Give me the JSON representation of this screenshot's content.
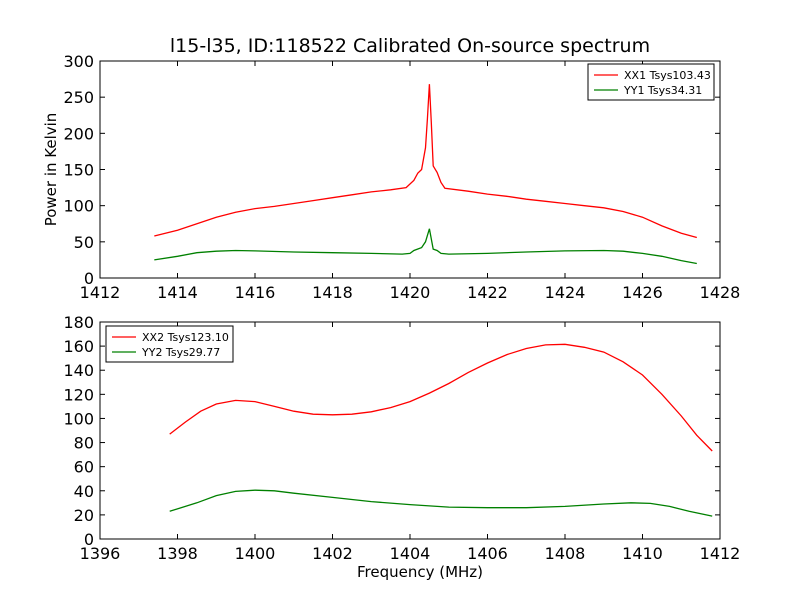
{
  "chart_data": [
    {
      "type": "line",
      "title": "l15-l35, ID:118522 Calibrated On-source spectrum",
      "xlabel": "",
      "ylabel": "Power in Kelvin",
      "xlim": [
        1412,
        1428
      ],
      "ylim": [
        0,
        300
      ],
      "xticks": [
        1412,
        1414,
        1416,
        1418,
        1420,
        1422,
        1424,
        1426,
        1428
      ],
      "yticks": [
        0,
        50,
        100,
        150,
        200,
        250,
        300
      ],
      "legend_position": "top-right",
      "series": [
        {
          "name": "XX1 Tsys103.43",
          "color": "#ff0000",
          "points": [
            [
              1413.4,
              58
            ],
            [
              1414.0,
              66
            ],
            [
              1414.5,
              75
            ],
            [
              1415.0,
              84
            ],
            [
              1415.5,
              91
            ],
            [
              1416.0,
              96
            ],
            [
              1416.5,
              99
            ],
            [
              1417.0,
              103
            ],
            [
              1417.5,
              107
            ],
            [
              1418.0,
              111
            ],
            [
              1418.5,
              115
            ],
            [
              1419.0,
              119
            ],
            [
              1419.5,
              122
            ],
            [
              1419.9,
              125
            ],
            [
              1420.1,
              135
            ],
            [
              1420.2,
              145
            ],
            [
              1420.3,
              150
            ],
            [
              1420.4,
              180
            ],
            [
              1420.45,
              220
            ],
            [
              1420.5,
              268
            ],
            [
              1420.55,
              215
            ],
            [
              1420.6,
              155
            ],
            [
              1420.7,
              146
            ],
            [
              1420.8,
              132
            ],
            [
              1420.9,
              124
            ],
            [
              1421.5,
              120
            ],
            [
              1422.0,
              116
            ],
            [
              1422.5,
              113
            ],
            [
              1423.0,
              109
            ],
            [
              1423.5,
              106
            ],
            [
              1424.0,
              103
            ],
            [
              1424.5,
              100
            ],
            [
              1425.0,
              97
            ],
            [
              1425.5,
              92
            ],
            [
              1426.0,
              84
            ],
            [
              1426.5,
              72
            ],
            [
              1427.0,
              62
            ],
            [
              1427.4,
              56
            ]
          ]
        },
        {
          "name": "YY1 Tsys34.31",
          "color": "#008000",
          "points": [
            [
              1413.4,
              25
            ],
            [
              1414.0,
              30
            ],
            [
              1414.5,
              35
            ],
            [
              1415.0,
              37
            ],
            [
              1415.5,
              38
            ],
            [
              1416.0,
              37.5
            ],
            [
              1417.0,
              36
            ],
            [
              1418.0,
              35
            ],
            [
              1419.0,
              34
            ],
            [
              1419.8,
              33
            ],
            [
              1420.0,
              34
            ],
            [
              1420.1,
              38
            ],
            [
              1420.3,
              42
            ],
            [
              1420.4,
              50
            ],
            [
              1420.5,
              68
            ],
            [
              1420.6,
              40
            ],
            [
              1420.7,
              38
            ],
            [
              1420.8,
              34
            ],
            [
              1421.0,
              33
            ],
            [
              1422.0,
              34
            ],
            [
              1423.0,
              36
            ],
            [
              1424.0,
              37.5
            ],
            [
              1425.0,
              38
            ],
            [
              1425.5,
              37
            ],
            [
              1426.0,
              34
            ],
            [
              1426.5,
              30
            ],
            [
              1427.0,
              24
            ],
            [
              1427.4,
              20
            ]
          ]
        }
      ]
    },
    {
      "type": "line",
      "title": "",
      "xlabel": "Frequency (MHz)",
      "ylabel": "",
      "xlim": [
        1396,
        1412
      ],
      "ylim": [
        0,
        180
      ],
      "xticks": [
        1396,
        1398,
        1400,
        1402,
        1404,
        1406,
        1408,
        1410,
        1412
      ],
      "yticks": [
        0,
        20,
        40,
        60,
        80,
        100,
        120,
        140,
        160,
        180
      ],
      "legend_position": "top-left",
      "series": [
        {
          "name": "XX2 Tsys123.10",
          "color": "#ff0000",
          "points": [
            [
              1397.8,
              87
            ],
            [
              1398.2,
              97
            ],
            [
              1398.6,
              106
            ],
            [
              1399.0,
              112
            ],
            [
              1399.5,
              115
            ],
            [
              1400.0,
              114
            ],
            [
              1400.5,
              110
            ],
            [
              1401.0,
              106
            ],
            [
              1401.5,
              103.5
            ],
            [
              1402.0,
              103
            ],
            [
              1402.5,
              103.5
            ],
            [
              1403.0,
              105.5
            ],
            [
              1403.5,
              109
            ],
            [
              1404.0,
              114
            ],
            [
              1404.5,
              121
            ],
            [
              1405.0,
              129
            ],
            [
              1405.5,
              138
            ],
            [
              1406.0,
              146
            ],
            [
              1406.5,
              153
            ],
            [
              1407.0,
              158
            ],
            [
              1407.5,
              161
            ],
            [
              1408.0,
              161.5
            ],
            [
              1408.5,
              159
            ],
            [
              1409.0,
              155
            ],
            [
              1409.5,
              147
            ],
            [
              1410.0,
              136
            ],
            [
              1410.5,
              120
            ],
            [
              1411.0,
              102
            ],
            [
              1411.4,
              86
            ],
            [
              1411.8,
              73
            ]
          ]
        },
        {
          "name": "YY2 Tsys29.77",
          "color": "#008000",
          "points": [
            [
              1397.8,
              23
            ],
            [
              1398.5,
              30
            ],
            [
              1399.0,
              36
            ],
            [
              1399.5,
              39.5
            ],
            [
              1400.0,
              40.5
            ],
            [
              1400.5,
              40
            ],
            [
              1401.0,
              38
            ],
            [
              1402.0,
              34.5
            ],
            [
              1403.0,
              31
            ],
            [
              1404.0,
              28.5
            ],
            [
              1405.0,
              26.5
            ],
            [
              1406.0,
              26
            ],
            [
              1407.0,
              26
            ],
            [
              1408.0,
              27
            ],
            [
              1409.0,
              29
            ],
            [
              1409.7,
              30
            ],
            [
              1410.2,
              29.5
            ],
            [
              1410.7,
              27
            ],
            [
              1411.2,
              23
            ],
            [
              1411.8,
              19
            ]
          ]
        }
      ]
    }
  ]
}
